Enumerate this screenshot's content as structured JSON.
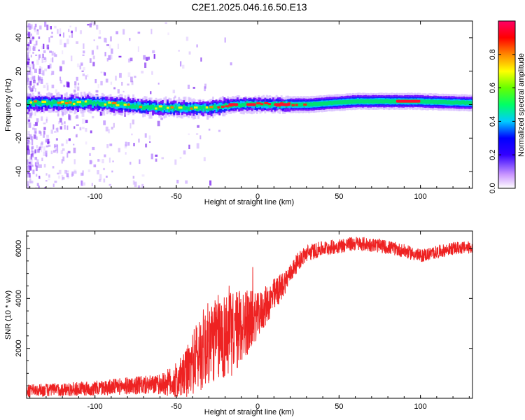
{
  "title": "C2E1.2025.046.16.50.E13",
  "chart_data": [
    {
      "type": "heatmap",
      "xlabel": "Height of straight line (km)",
      "ylabel": "Frequency (Hz)",
      "xlim": [
        -142,
        132
      ],
      "ylim": [
        -50,
        50
      ],
      "xticks": [
        -100,
        -50,
        0,
        50,
        100
      ],
      "yticks": [
        -40,
        -20,
        0,
        20,
        40
      ],
      "xtick_labels": [
        "-100",
        "-50",
        "0",
        "50",
        "100"
      ],
      "ytick_labels": [
        "-40",
        "-20",
        "0",
        "20",
        "40"
      ],
      "colorbar": {
        "label": "Normalized spectral amplitude",
        "range": [
          0,
          1
        ],
        "ticks": [
          0.0,
          0.2,
          0.4,
          0.6,
          0.8
        ],
        "tick_labels": [
          "0.0",
          "0.2",
          "0.4",
          "0.6",
          "0.8"
        ]
      },
      "band_center_hz": [
        {
          "x": -140,
          "f": 1
        },
        {
          "x": -100,
          "f": 1
        },
        {
          "x": -60,
          "f": -2
        },
        {
          "x": -30,
          "f": -2
        },
        {
          "x": -15,
          "f": 0
        },
        {
          "x": 0,
          "f": 0
        },
        {
          "x": 30,
          "f": 0
        },
        {
          "x": 60,
          "f": 2
        },
        {
          "x": 95,
          "f": 2
        },
        {
          "x": 132,
          "f": 1
        }
      ],
      "colors": {
        "low": "#cc99ff",
        "mid": "#00cc66",
        "high": "#ff0033"
      }
    },
    {
      "type": "line",
      "xlabel": "Height of straight line (km)",
      "ylabel": "SNR (10 * v/v)",
      "xlim": [
        -142,
        132
      ],
      "ylim": [
        0,
        6700
      ],
      "xticks": [
        -100,
        -50,
        0,
        50,
        100
      ],
      "yticks": [
        2000,
        4000,
        6000
      ],
      "xtick_labels": [
        "-100",
        "-50",
        "0",
        "50",
        "100"
      ],
      "ytick_labels": [
        "2000",
        "4000",
        "6000"
      ],
      "series": [
        {
          "color": "#ee2222",
          "trend": [
            {
              "x": -142,
              "y": 300
            },
            {
              "x": -120,
              "y": 350
            },
            {
              "x": -100,
              "y": 400
            },
            {
              "x": -80,
              "y": 500
            },
            {
              "x": -60,
              "y": 550
            },
            {
              "x": -50,
              "y": 700
            },
            {
              "x": -45,
              "y": 900
            },
            {
              "x": -40,
              "y": 1400
            },
            {
              "x": -35,
              "y": 1900
            },
            {
              "x": -30,
              "y": 2200
            },
            {
              "x": -25,
              "y": 2400
            },
            {
              "x": -20,
              "y": 2500
            },
            {
              "x": -15,
              "y": 2600
            },
            {
              "x": -10,
              "y": 2900
            },
            {
              "x": -5,
              "y": 3100
            },
            {
              "x": 0,
              "y": 3300
            },
            {
              "x": 5,
              "y": 3700
            },
            {
              "x": 10,
              "y": 4100
            },
            {
              "x": 15,
              "y": 4500
            },
            {
              "x": 20,
              "y": 5000
            },
            {
              "x": 25,
              "y": 5500
            },
            {
              "x": 30,
              "y": 5800
            },
            {
              "x": 40,
              "y": 6000
            },
            {
              "x": 50,
              "y": 6100
            },
            {
              "x": 60,
              "y": 6200
            },
            {
              "x": 70,
              "y": 6150
            },
            {
              "x": 80,
              "y": 6050
            },
            {
              "x": 90,
              "y": 5900
            },
            {
              "x": 100,
              "y": 5700
            },
            {
              "x": 110,
              "y": 5850
            },
            {
              "x": 120,
              "y": 6000
            },
            {
              "x": 132,
              "y": 6050
            }
          ],
          "noise": [
            {
              "x": -142,
              "a": 250
            },
            {
              "x": -100,
              "a": 300
            },
            {
              "x": -60,
              "a": 400
            },
            {
              "x": -45,
              "a": 900
            },
            {
              "x": -35,
              "a": 1600
            },
            {
              "x": -20,
              "a": 1800
            },
            {
              "x": -10,
              "a": 1600
            },
            {
              "x": 0,
              "a": 900
            },
            {
              "x": 10,
              "a": 700
            },
            {
              "x": 20,
              "a": 400
            },
            {
              "x": 40,
              "a": 300
            },
            {
              "x": 132,
              "a": 250
            }
          ]
        }
      ]
    }
  ]
}
